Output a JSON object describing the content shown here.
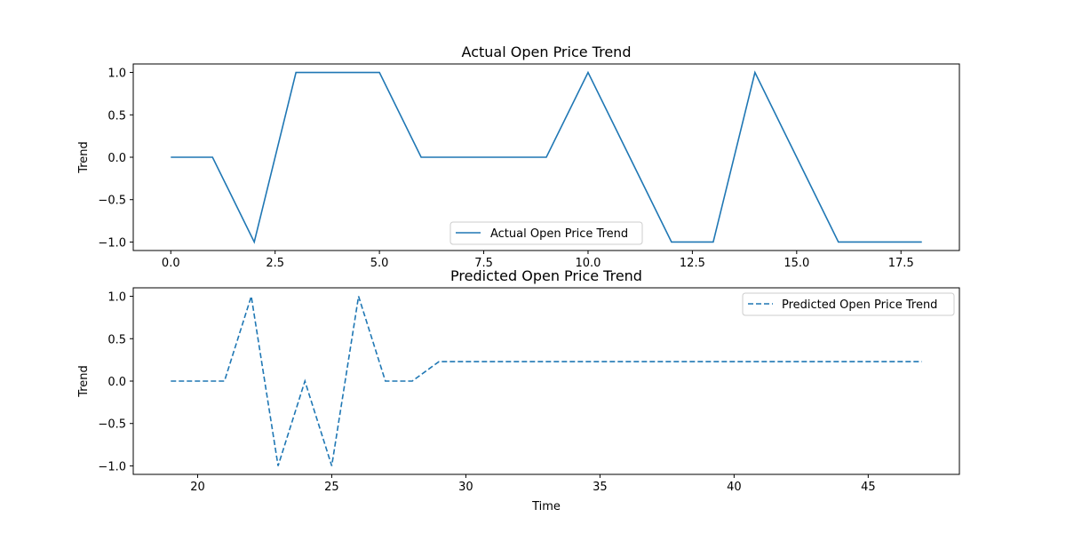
{
  "chart_data": [
    {
      "type": "line",
      "title": "Actual Open Price Trend",
      "xlabel": "",
      "ylabel": "Trend",
      "xlim": [
        -0.9,
        18.9
      ],
      "ylim": [
        -1.1,
        1.1
      ],
      "xticks": [
        0.0,
        2.5,
        5.0,
        7.5,
        10.0,
        12.5,
        15.0,
        17.5
      ],
      "xtick_labels": [
        "0.0",
        "2.5",
        "5.0",
        "7.5",
        "10.0",
        "12.5",
        "15.0",
        "17.5"
      ],
      "yticks": [
        1.0,
        0.5,
        0.0,
        -0.5,
        -1.0
      ],
      "ytick_labels": [
        "1.0",
        "0.5",
        "0.0",
        "−0.5",
        "−1.0"
      ],
      "legend_position": "lower-center",
      "grid": false,
      "series": [
        {
          "name": "Actual Open Price Trend",
          "color": "#1f77b4",
          "line_style": "solid",
          "x": [
            0,
            1,
            2,
            3,
            4,
            5,
            6,
            7,
            8,
            9,
            10,
            11,
            12,
            13,
            14,
            15,
            16,
            17,
            18
          ],
          "y": [
            0,
            0,
            -1,
            1,
            1,
            1,
            0,
            0,
            0,
            0,
            1,
            0,
            -1,
            -1,
            1,
            0,
            -1,
            -1,
            -1
          ]
        }
      ]
    },
    {
      "type": "line",
      "title": "Predicted Open Price Trend",
      "xlabel": "Time",
      "ylabel": "Trend",
      "xlim": [
        17.6,
        48.4
      ],
      "ylim": [
        -1.1,
        1.1
      ],
      "xticks": [
        20,
        25,
        30,
        35,
        40,
        45
      ],
      "xtick_labels": [
        "20",
        "25",
        "30",
        "35",
        "40",
        "45"
      ],
      "yticks": [
        1.0,
        0.5,
        0.0,
        -0.5,
        -1.0
      ],
      "ytick_labels": [
        "1.0",
        "0.5",
        "0.0",
        "−0.5",
        "−1.0"
      ],
      "legend_position": "upper-right",
      "grid": false,
      "series": [
        {
          "name": "Predicted Open Price Trend",
          "color": "#1f77b4",
          "line_style": "dashed",
          "x": [
            19,
            20,
            21,
            22,
            23,
            24,
            25,
            26,
            27,
            28,
            29,
            30,
            31,
            32,
            33,
            34,
            35,
            36,
            37,
            38,
            39,
            40,
            41,
            42,
            43,
            44,
            45,
            46,
            47
          ],
          "y": [
            0,
            0,
            0,
            1,
            -1,
            0,
            -1,
            1,
            0,
            0,
            0.23,
            0.23,
            0.23,
            0.23,
            0.23,
            0.23,
            0.23,
            0.23,
            0.23,
            0.23,
            0.23,
            0.23,
            0.23,
            0.23,
            0.23,
            0.23,
            0.23,
            0.23,
            0.23
          ]
        }
      ]
    }
  ]
}
